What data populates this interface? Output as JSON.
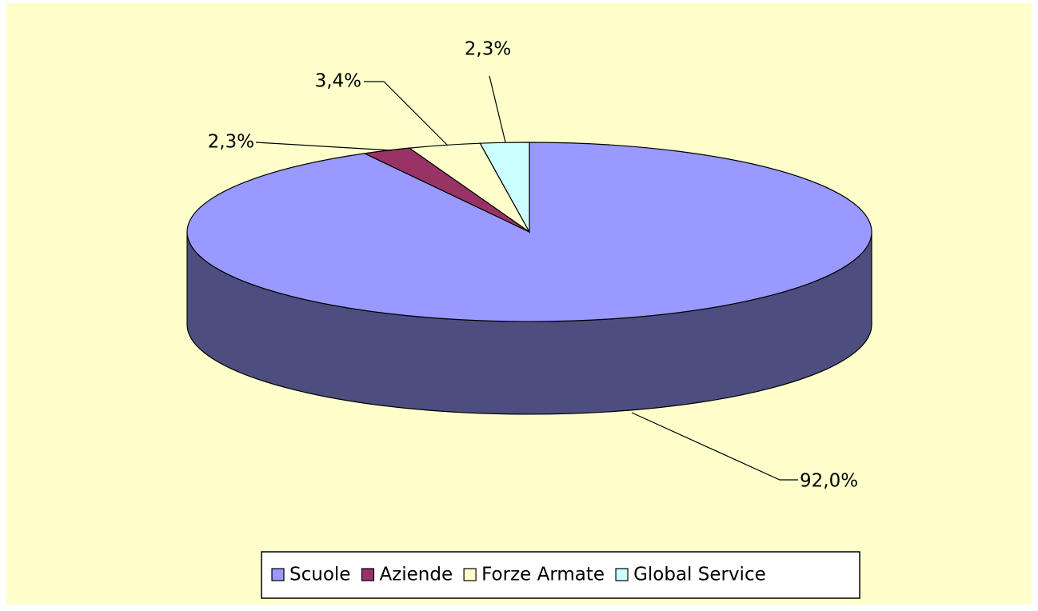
{
  "chart_data": {
    "type": "pie",
    "pie_3d": true,
    "categories": [
      "Scuole",
      "Aziende",
      "Forze Armate",
      "Global Service"
    ],
    "values": [
      92.0,
      2.3,
      3.4,
      2.3
    ],
    "value_labels": [
      "92,0%",
      "2,3%",
      "3,4%",
      "2,3%"
    ],
    "colors": [
      "#9999ff",
      "#993366",
      "#ffffcc",
      "#ccffff"
    ],
    "legend": "bottom"
  }
}
